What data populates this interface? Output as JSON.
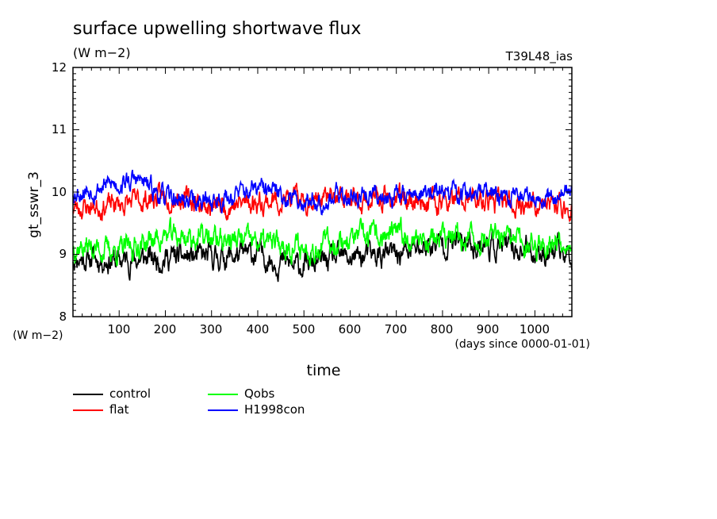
{
  "chart_data": {
    "type": "line",
    "title": "surface upwelling shortwave flux",
    "subtitle": "(W m−2)",
    "run_id": "T39L48_ias",
    "ylabel": "gt_sswr_3",
    "yunit": "(W m−2)",
    "xlabel": "time",
    "xunit": "(days since 0000-01-01)",
    "xlim": [
      0,
      1080
    ],
    "ylim": [
      8,
      12
    ],
    "yticks": [
      "8",
      "9",
      "10",
      "11",
      "12"
    ],
    "xticks": [
      "100",
      "200",
      "300",
      "400",
      "500",
      "600",
      "700",
      "800",
      "900",
      "1000"
    ],
    "grid": false,
    "legend_position": "bottom-left",
    "series": [
      {
        "name": "control",
        "color": "#000000",
        "mean": 9.05,
        "amplitude": 0.22,
        "seed": 11,
        "waypoints": [
          [
            0,
            8.95
          ],
          [
            100,
            8.9
          ],
          [
            200,
            8.95
          ],
          [
            300,
            8.95
          ],
          [
            400,
            9.0
          ],
          [
            480,
            8.8
          ],
          [
            600,
            8.95
          ],
          [
            700,
            9.0
          ],
          [
            800,
            9.2
          ],
          [
            900,
            9.15
          ],
          [
            1000,
            9.05
          ],
          [
            1080,
            9.0
          ]
        ]
      },
      {
        "name": "flat",
        "color": "#ff0000",
        "mean": 9.85,
        "amplitude": 0.2,
        "seed": 23,
        "waypoints": [
          [
            0,
            9.75
          ],
          [
            100,
            9.8
          ],
          [
            220,
            9.95
          ],
          [
            300,
            9.75
          ],
          [
            400,
            9.85
          ],
          [
            550,
            9.9
          ],
          [
            600,
            9.85
          ],
          [
            700,
            9.9
          ],
          [
            800,
            9.85
          ],
          [
            900,
            9.85
          ],
          [
            1000,
            9.8
          ],
          [
            1080,
            9.75
          ]
        ]
      },
      {
        "name": "Qobs",
        "color": "#00ff00",
        "mean": 9.2,
        "amplitude": 0.22,
        "seed": 37,
        "waypoints": [
          [
            0,
            9.15
          ],
          [
            100,
            9.05
          ],
          [
            200,
            9.3
          ],
          [
            300,
            9.25
          ],
          [
            400,
            9.2
          ],
          [
            500,
            9.1
          ],
          [
            600,
            9.25
          ],
          [
            700,
            9.3
          ],
          [
            800,
            9.25
          ],
          [
            900,
            9.25
          ],
          [
            1000,
            9.15
          ],
          [
            1080,
            9.25
          ]
        ]
      },
      {
        "name": "H1998con",
        "color": "#0000ff",
        "mean": 10.0,
        "amplitude": 0.18,
        "seed": 53,
        "waypoints": [
          [
            0,
            10.0
          ],
          [
            140,
            10.2
          ],
          [
            200,
            9.9
          ],
          [
            300,
            9.85
          ],
          [
            400,
            10.05
          ],
          [
            500,
            9.85
          ],
          [
            600,
            9.95
          ],
          [
            700,
            9.95
          ],
          [
            800,
            10.0
          ],
          [
            900,
            9.95
          ],
          [
            1000,
            9.95
          ],
          [
            1080,
            10.0
          ]
        ]
      }
    ]
  }
}
